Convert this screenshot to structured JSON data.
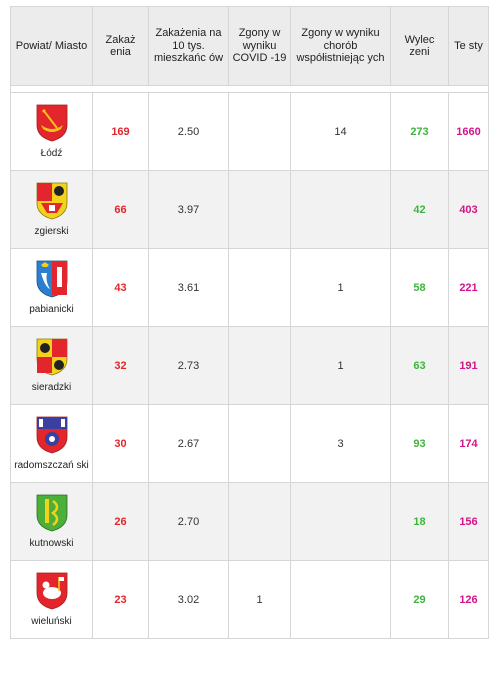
{
  "headers": {
    "place": "Powiat/ Miasto",
    "cases": "Zakaż enia",
    "per10k": "Zakażenia na 10 tys. mieszkańc ów",
    "deaths_covid": "Zgony w wyniku COVID -19",
    "deaths_comorb": "Zgony w wyniku chorób współistniejąc ych",
    "recovered": "Wylec zeni",
    "tests": "Te sty"
  },
  "colors": {
    "cases": "#e3262b",
    "recovered": "#3db53d",
    "tests": "#d4148a"
  },
  "rows": [
    {
      "place": "Łódź",
      "crest": "lodz-crest-icon",
      "cases": "169",
      "per10k": "2.50",
      "deaths_covid": "",
      "deaths_comorb": "14",
      "recovered": "273",
      "tests": "1660"
    },
    {
      "place": "zgierski",
      "crest": "zgierski-crest-icon",
      "cases": "66",
      "per10k": "3.97",
      "deaths_covid": "",
      "deaths_comorb": "",
      "recovered": "42",
      "tests": "403"
    },
    {
      "place": "pabianicki",
      "crest": "pabianicki-crest-icon",
      "cases": "43",
      "per10k": "3.61",
      "deaths_covid": "",
      "deaths_comorb": "1",
      "recovered": "58",
      "tests": "221"
    },
    {
      "place": "sieradzki",
      "crest": "sieradzki-crest-icon",
      "cases": "32",
      "per10k": "2.73",
      "deaths_covid": "",
      "deaths_comorb": "1",
      "recovered": "63",
      "tests": "191"
    },
    {
      "place": "radomszczań ski",
      "crest": "radomszczanski-crest-icon",
      "cases": "30",
      "per10k": "2.67",
      "deaths_covid": "",
      "deaths_comorb": "3",
      "recovered": "93",
      "tests": "174"
    },
    {
      "place": "kutnowski",
      "crest": "kutnowski-crest-icon",
      "cases": "26",
      "per10k": "2.70",
      "deaths_covid": "",
      "deaths_comorb": "",
      "recovered": "18",
      "tests": "156"
    },
    {
      "place": "wieluński",
      "crest": "wielunski-crest-icon",
      "cases": "23",
      "per10k": "3.02",
      "deaths_covid": "1",
      "deaths_comorb": "",
      "recovered": "29",
      "tests": "126"
    }
  ]
}
